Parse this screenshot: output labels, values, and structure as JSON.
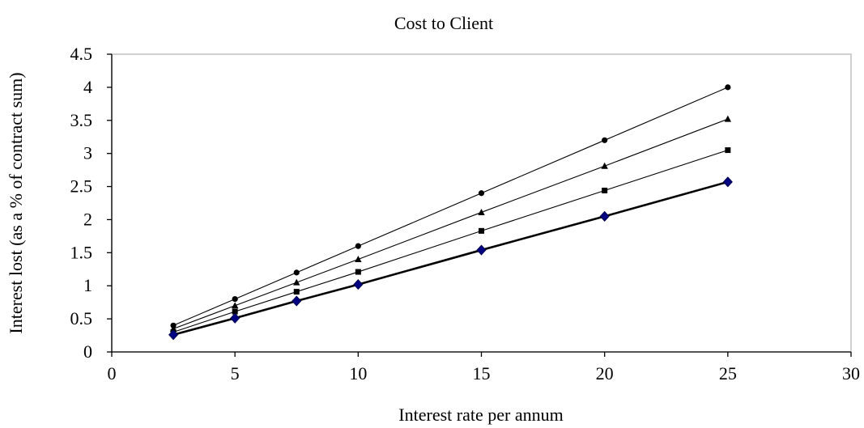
{
  "chart_data": {
    "type": "line",
    "title": "Cost to Client",
    "xlabel": "Interest rate per annum",
    "ylabel": "Interest lost (as a % of contract sum)",
    "xlim": [
      0,
      30
    ],
    "ylim": [
      0,
      4.5
    ],
    "xticks": [
      0,
      5,
      10,
      15,
      20,
      25,
      30
    ],
    "yticks": [
      0,
      0.5,
      1,
      1.5,
      2,
      2.5,
      3,
      3.5,
      4,
      4.5
    ],
    "x": [
      2.5,
      5,
      7.5,
      10,
      15,
      20,
      25
    ],
    "grid": false,
    "legend": "none",
    "series": [
      {
        "marker": "circle",
        "color": "#000000",
        "values": [
          0.4,
          0.8,
          1.2,
          1.6,
          2.4,
          3.2,
          4.0
        ]
      },
      {
        "marker": "triangle",
        "color": "#000000",
        "values": [
          0.35,
          0.7,
          1.05,
          1.4,
          2.11,
          2.81,
          3.52
        ]
      },
      {
        "marker": "square",
        "color": "#000000",
        "values": [
          0.3,
          0.61,
          0.91,
          1.21,
          1.83,
          2.44,
          3.05
        ]
      },
      {
        "marker": "diamond",
        "color": "#000080",
        "values": [
          0.26,
          0.51,
          0.77,
          1.02,
          1.54,
          2.05,
          2.57
        ]
      }
    ]
  }
}
